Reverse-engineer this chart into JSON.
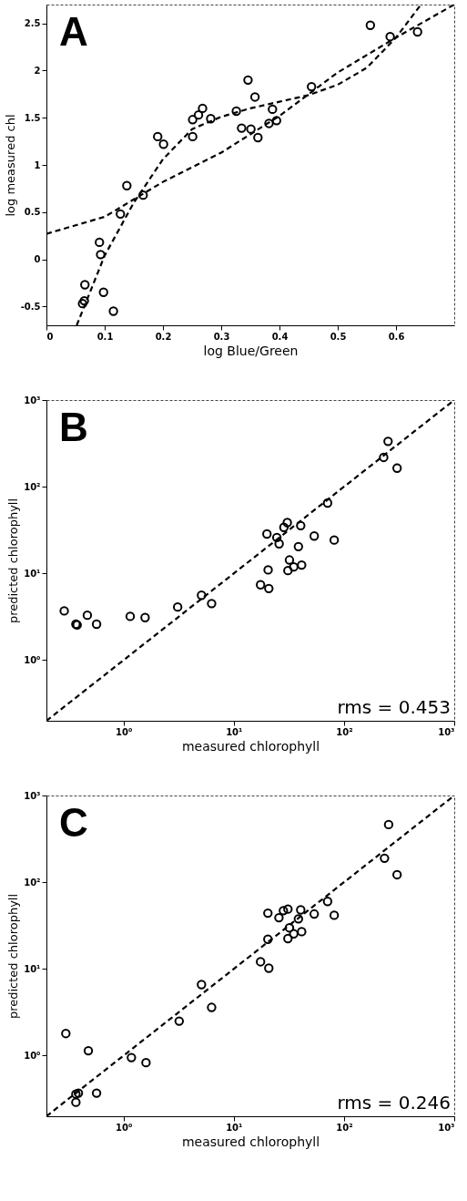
{
  "chart_data": [
    {
      "type": "scatter",
      "title": "A",
      "xlabel": "log Blue/Green",
      "ylabel": "log measured chl",
      "xlim": [
        0,
        0.7
      ],
      "ylim": [
        -0.7,
        2.7
      ],
      "xticks": [
        0,
        0.1,
        0.2,
        0.3,
        0.4,
        0.5,
        0.6
      ],
      "yticks": [
        -0.5,
        0,
        0.5,
        1,
        1.5,
        2,
        2.5
      ],
      "series": [
        {
          "marker": "circle",
          "color": "#000000",
          "x": [
            0.065,
            0.062,
            0.066,
            0.091,
            0.093,
            0.098,
            0.115,
            0.127,
            0.138,
            0.166,
            0.191,
            0.201,
            0.251,
            0.251,
            0.261,
            0.268,
            0.282,
            0.326,
            0.335,
            0.346,
            0.351,
            0.358,
            0.363,
            0.382,
            0.388,
            0.395,
            0.455,
            0.556,
            0.59,
            0.637
          ],
          "values": [
            -0.44,
            -0.47,
            -0.27,
            0.18,
            0.05,
            -0.35,
            -0.55,
            0.48,
            0.78,
            0.68,
            1.3,
            1.22,
            1.48,
            1.3,
            1.53,
            1.6,
            1.49,
            1.57,
            1.39,
            1.9,
            1.38,
            1.72,
            1.29,
            1.44,
            1.59,
            1.47,
            1.83,
            2.48,
            2.36,
            2.41
          ]
        },
        {
          "type": "line",
          "color": "#000000",
          "line_style": "dashed",
          "x": [
            0,
            0.1,
            0.2,
            0.3,
            0.4,
            0.5,
            0.6,
            0.7
          ],
          "values": [
            0.27,
            0.45,
            0.82,
            1.13,
            1.52,
            1.98,
            2.35,
            2.7
          ]
        },
        {
          "type": "line",
          "color": "#000000",
          "line_style": "dashed",
          "x": [
            0.052,
            0.1,
            0.15,
            0.2,
            0.25,
            0.3,
            0.35,
            0.4,
            0.45,
            0.5,
            0.55,
            0.6,
            0.643
          ],
          "values": [
            -0.7,
            0.04,
            0.6,
            1.06,
            1.38,
            1.51,
            1.6,
            1.67,
            1.74,
            1.85,
            2.03,
            2.35,
            2.7
          ]
        }
      ]
    },
    {
      "type": "scatter",
      "title": "B",
      "xlabel": "measured chlorophyll",
      "ylabel": "predicted chlorophyll",
      "log": "xy",
      "xlim": [
        0.2,
        1000
      ],
      "ylim": [
        0.2,
        1000
      ],
      "xticks": [
        {
          "value": 1,
          "label": "10⁰"
        },
        {
          "value": 10,
          "label": "10¹"
        },
        {
          "value": 100,
          "label": "10²"
        },
        {
          "value": 1000,
          "label": "10³"
        }
      ],
      "yticks": [
        {
          "value": 1,
          "label": "10⁰"
        },
        {
          "value": 10,
          "label": "10¹"
        },
        {
          "value": 100,
          "label": "10²"
        },
        {
          "value": 1000,
          "label": "10³"
        }
      ],
      "annotations": [
        "rms = 0.453"
      ],
      "series": [
        {
          "marker": "circle",
          "color": "#000000",
          "x": [
            0.29,
            0.37,
            0.38,
            0.47,
            0.57,
            1.15,
            1.57,
            3.1,
            5.1,
            6.3,
            17.5,
            20,
            20.5,
            20.8,
            24.6,
            25.8,
            28.5,
            30.6,
            31,
            32,
            35,
            38.6,
            40.5,
            41.3,
            53.7,
            71,
            81.5,
            229,
            251,
            303
          ],
          "values": [
            3.7,
            2.6,
            2.55,
            3.3,
            2.6,
            3.2,
            3.1,
            4.1,
            5.6,
            4.5,
            7.4,
            28.5,
            11,
            6.7,
            26,
            22,
            34,
            38.6,
            10.8,
            14.3,
            11.9,
            20.4,
            35.6,
            12.5,
            27,
            65,
            24.3,
            218,
            334,
            164
          ]
        },
        {
          "type": "line",
          "color": "#000000",
          "line_style": "dashed",
          "x": [
            0.2,
            1000
          ],
          "values": [
            0.2,
            1000
          ]
        }
      ]
    },
    {
      "type": "scatter",
      "title": "C",
      "xlabel": "measured chlorophyll",
      "ylabel": "predicted chlorophyll",
      "log": "xy",
      "xlim": [
        0.2,
        1000
      ],
      "ylim": [
        0.2,
        1000
      ],
      "xticks": [
        {
          "value": 1,
          "label": "10⁰"
        },
        {
          "value": 10,
          "label": "10¹"
        },
        {
          "value": 100,
          "label": "10²"
        },
        {
          "value": 1000,
          "label": "10³"
        }
      ],
      "yticks": [
        {
          "value": 1,
          "label": "10⁰"
        },
        {
          "value": 10,
          "label": "10¹"
        },
        {
          "value": 100,
          "label": "10²"
        },
        {
          "value": 1000,
          "label": "10³"
        }
      ],
      "annotations": [
        "rms = 0.246"
      ],
      "series": [
        {
          "marker": "circle",
          "color": "#000000",
          "x": [
            0.3,
            0.37,
            0.39,
            0.37,
            0.48,
            0.57,
            1.18,
            1.6,
            3.2,
            5.1,
            6.3,
            17.5,
            20.4,
            20.4,
            20.8,
            25.7,
            28.2,
            31,
            31,
            32,
            35,
            38.6,
            40.5,
            41.3,
            53.7,
            71,
            81.5,
            233,
            254,
            303
          ],
          "values": [
            1.8,
            0.36,
            0.37,
            0.29,
            1.14,
            0.37,
            0.95,
            0.83,
            2.5,
            6.6,
            3.6,
            12.1,
            44,
            22,
            10.2,
            39,
            47,
            49,
            22.4,
            29.8,
            25.4,
            37.8,
            48,
            26.9,
            43,
            60,
            41.6,
            189,
            462,
            122
          ]
        },
        {
          "type": "line",
          "color": "#000000",
          "line_style": "dashed",
          "x": [
            0.2,
            1000
          ],
          "values": [
            0.2,
            1000
          ]
        }
      ]
    }
  ]
}
